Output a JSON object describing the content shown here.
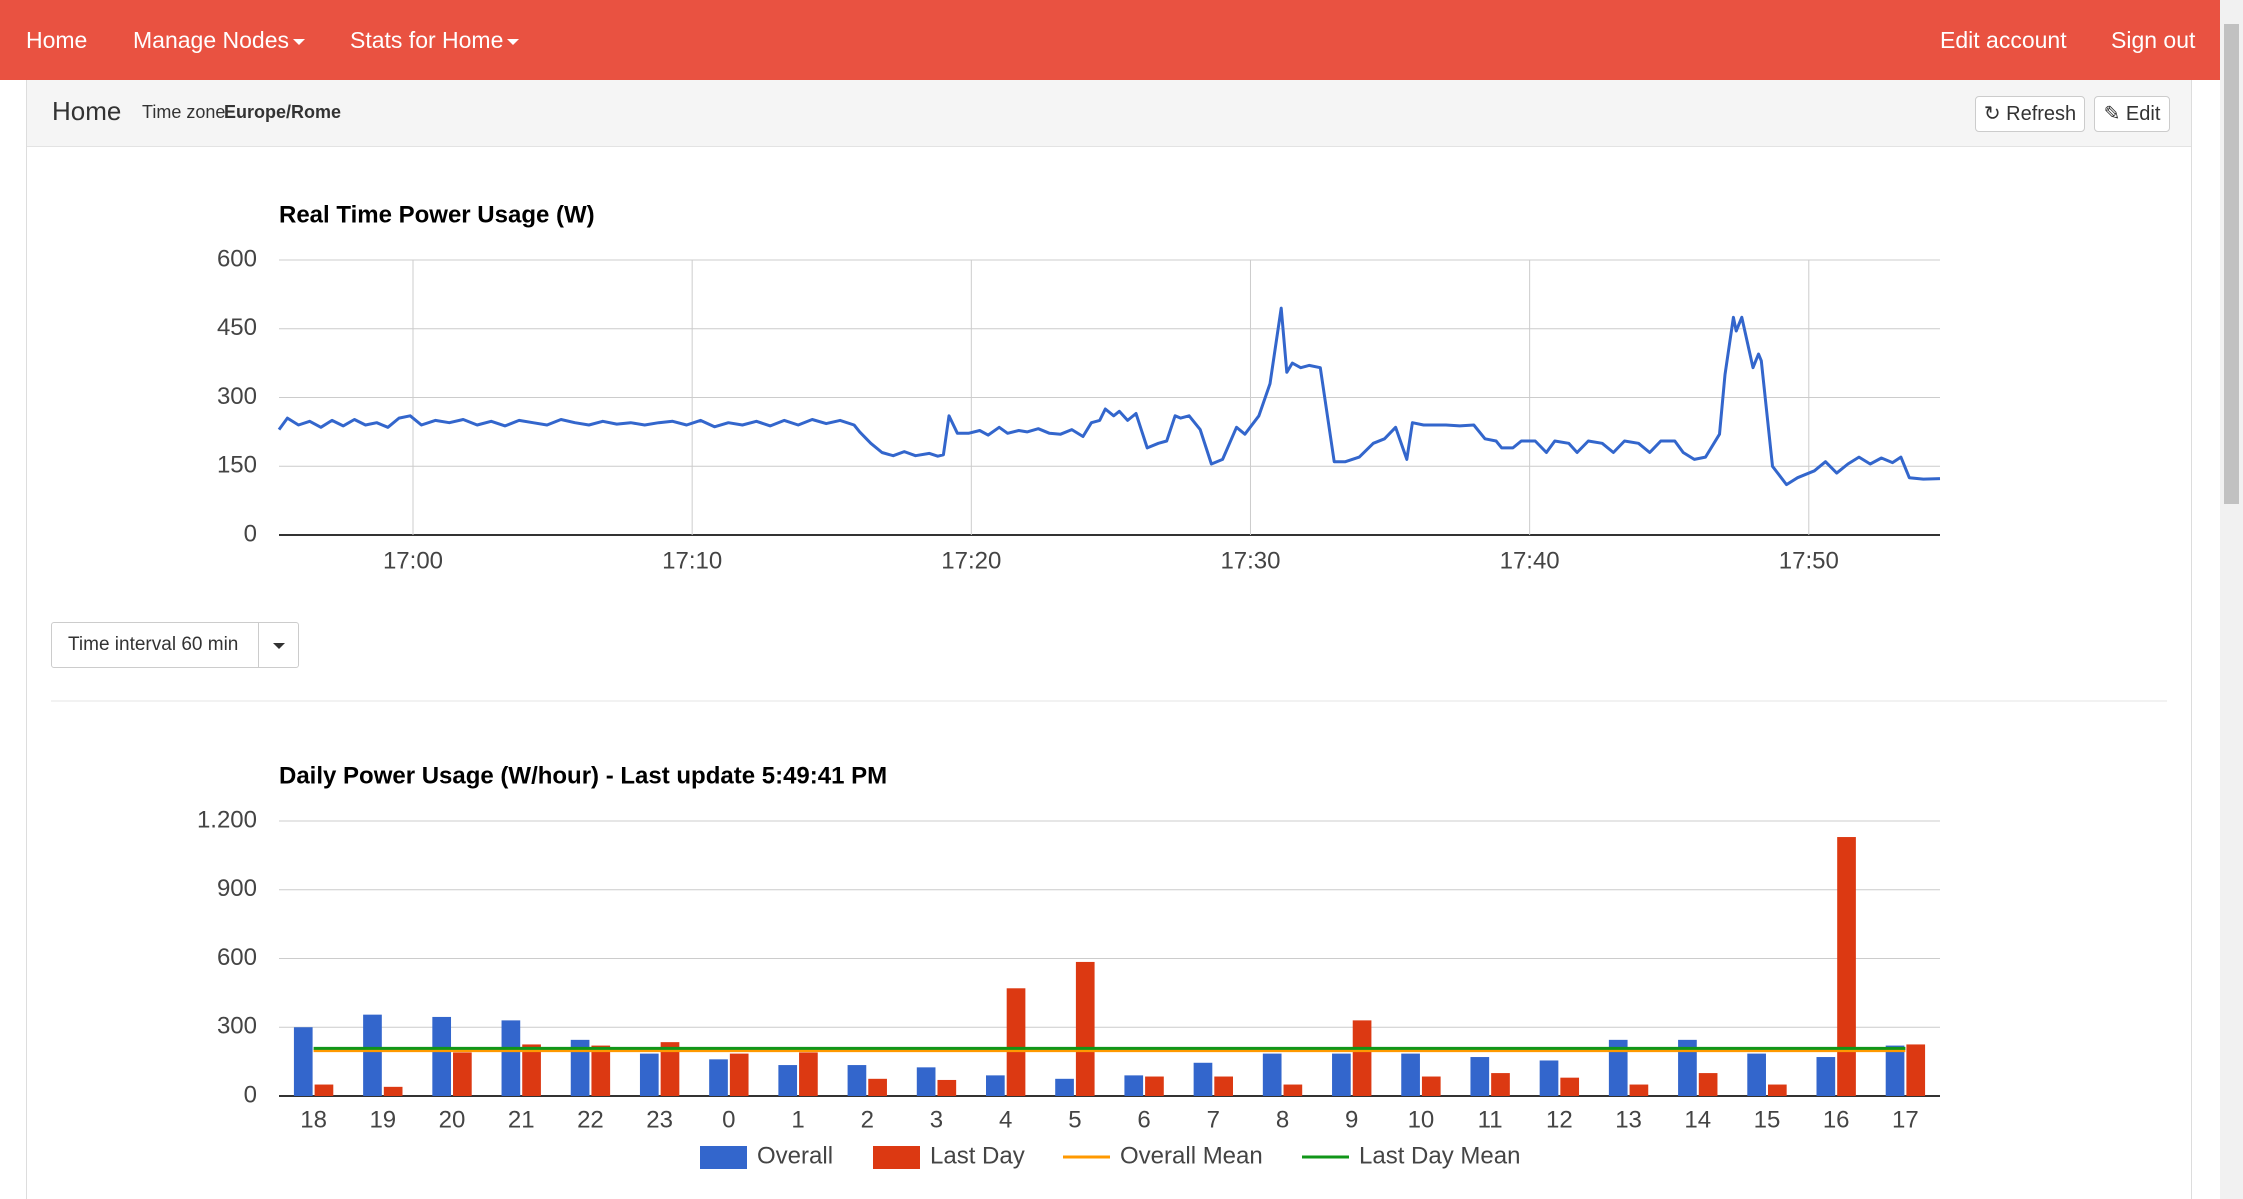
{
  "nav": {
    "left": [
      "Home",
      "Manage Nodes",
      "Stats for Home"
    ],
    "right": [
      "Edit account",
      "Sign out"
    ]
  },
  "header": {
    "title": "Home",
    "timezone_label": "Time zone",
    "timezone": "Europe/Rome",
    "buttons": [
      "Refresh",
      "Edit"
    ]
  },
  "interval": "Time interval 60 min",
  "chart_data": [
    {
      "type": "line",
      "title": "Real Time Power Usage (W)",
      "color": "#3366cc",
      "grid": true,
      "xgrid": true,
      "x": [
        1015.2,
        1015.5,
        1015.9,
        1016.3,
        1016.7,
        1017.1,
        1017.5,
        1017.9,
        1018.3,
        1018.7,
        1019.1,
        1019.5,
        1019.9,
        1020.3,
        1020.8,
        1021.3,
        1021.8,
        1022.3,
        1022.8,
        1023.3,
        1023.8,
        1024.3,
        1024.8,
        1025.3,
        1025.8,
        1026.3,
        1026.8,
        1027.3,
        1027.8,
        1028.3,
        1028.8,
        1029.3,
        1029.8,
        1030.3,
        1030.8,
        1031.3,
        1031.8,
        1032.3,
        1032.8,
        1033.3,
        1033.8,
        1034.3,
        1034.8,
        1035.3,
        1035.8,
        1036.0,
        1036.4,
        1036.8,
        1037.2,
        1037.6,
        1038.0,
        1038.5,
        1038.8,
        1039.0,
        1039.2,
        1039.5,
        1039.9,
        1040.3,
        1040.6,
        1041.0,
        1041.3,
        1041.7,
        1042.0,
        1042.4,
        1042.8,
        1043.2,
        1043.6,
        1044.0,
        1044.3,
        1044.6,
        1044.8,
        1045.1,
        1045.3,
        1045.6,
        1045.9,
        1046.3,
        1046.7,
        1047.0,
        1047.3,
        1047.5,
        1047.8,
        1048.2,
        1048.6,
        1049.0,
        1049.5,
        1049.8,
        1050.3,
        1050.7,
        1051.1,
        1051.3,
        1051.5,
        1051.8,
        1052.1,
        1052.5,
        1053.0,
        1053.4,
        1053.9,
        1054.4,
        1054.8,
        1055.2,
        1055.6,
        1055.8,
        1056.2,
        1057.0,
        1057.5,
        1058.0,
        1058.4,
        1058.8,
        1059.0,
        1059.4,
        1059.7,
        1060.2,
        1060.6,
        1060.9,
        1061.4,
        1061.7,
        1062.1,
        1062.6,
        1063.0,
        1063.4,
        1063.9,
        1064.3,
        1064.7,
        1065.2,
        1065.5,
        1065.9,
        1066.3,
        1066.8,
        1067.0,
        1067.3,
        1067.4,
        1067.6,
        1067.8,
        1068.0,
        1068.2,
        1068.3,
        1068.7,
        1069.2,
        1069.6,
        1070.2,
        1070.6,
        1071.0,
        1071.4,
        1071.8,
        1072.2,
        1072.6,
        1073.0,
        1073.3,
        1073.6,
        1074.1,
        1074.7
      ],
      "values": [
        230,
        255,
        240,
        248,
        235,
        250,
        238,
        252,
        240,
        245,
        235,
        255,
        260,
        240,
        250,
        245,
        252,
        240,
        248,
        238,
        250,
        245,
        240,
        252,
        245,
        240,
        248,
        242,
        245,
        240,
        245,
        248,
        240,
        250,
        236,
        245,
        240,
        248,
        238,
        250,
        240,
        252,
        243,
        250,
        240,
        225,
        200,
        180,
        173,
        182,
        173,
        178,
        172,
        175,
        260,
        222,
        222,
        228,
        218,
        235,
        222,
        228,
        225,
        232,
        222,
        220,
        230,
        215,
        245,
        250,
        275,
        260,
        270,
        250,
        265,
        190,
        200,
        205,
        260,
        255,
        260,
        230,
        155,
        165,
        235,
        220,
        260,
        330,
        495,
        355,
        375,
        365,
        370,
        365,
        160,
        160,
        170,
        200,
        210,
        235,
        165,
        245,
        240,
        240,
        238,
        240,
        210,
        205,
        190,
        190,
        205,
        205,
        180,
        205,
        200,
        180,
        205,
        200,
        180,
        205,
        200,
        180,
        205,
        205,
        180,
        165,
        170,
        220,
        350,
        475,
        445,
        475,
        420,
        365,
        395,
        380,
        150,
        110,
        125,
        140,
        160,
        135,
        155,
        170,
        155,
        168,
        158,
        170,
        125,
        122,
        123
      ],
      "xlim": [
        1015.2,
        1074.7
      ],
      "xticks": [
        {
          "value": 1020,
          "label": "17:00"
        },
        {
          "value": 1030,
          "label": "17:10"
        },
        {
          "value": 1040,
          "label": "17:20"
        },
        {
          "value": 1050,
          "label": "17:30"
        },
        {
          "value": 1060,
          "label": "17:40"
        },
        {
          "value": 1070,
          "label": "17:50"
        }
      ],
      "ylim": [
        0,
        600
      ],
      "yticks": [
        0,
        150,
        300,
        450,
        600
      ]
    },
    {
      "type": "bar",
      "title": "Daily Power Usage (W/hour) - Last update 5:49:41 PM",
      "grid": true,
      "categories": [
        "18",
        "19",
        "20",
        "21",
        "22",
        "23",
        "0",
        "1",
        "2",
        "3",
        "4",
        "5",
        "6",
        "7",
        "8",
        "9",
        "10",
        "11",
        "12",
        "13",
        "14",
        "15",
        "16",
        "17"
      ],
      "series": [
        {
          "name": "Overall",
          "color": "#3366cc",
          "values": [
            300,
            355,
            345,
            330,
            245,
            185,
            160,
            135,
            135,
            125,
            90,
            75,
            90,
            145,
            185,
            185,
            185,
            170,
            155,
            245,
            245,
            185,
            170,
            220
          ]
        },
        {
          "name": "Last Day",
          "color": "#dc3912",
          "values": [
            50,
            40,
            190,
            225,
            220,
            235,
            185,
            190,
            75,
            70,
            470,
            585,
            85,
            85,
            50,
            330,
            85,
            100,
            80,
            50,
            100,
            50,
            1130,
            225
          ]
        }
      ],
      "mean_lines": [
        {
          "name": "Overall Mean",
          "color": "#ff9900",
          "value": 198
        },
        {
          "name": "Last Day Mean",
          "color": "#109618",
          "value": 208
        }
      ],
      "ylim": [
        0,
        1200
      ],
      "yticks": [
        0,
        300,
        600,
        900,
        {
          "value": 1200,
          "label": "1.200"
        }
      ]
    }
  ]
}
